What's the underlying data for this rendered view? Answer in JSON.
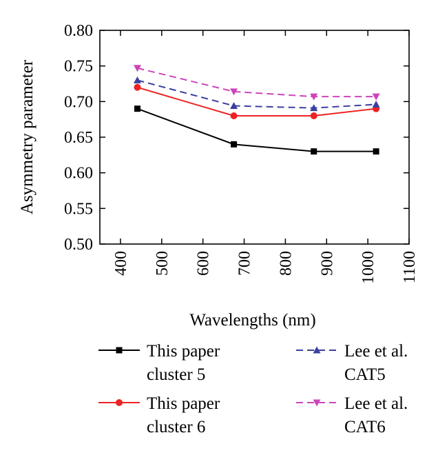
{
  "chart_data": {
    "type": "line",
    "xlabel": "Wavelengths (nm)",
    "ylabel": "Asymmetry parameter",
    "xlim": [
      350,
      1100
    ],
    "ylim": [
      0.5,
      0.8
    ],
    "x_ticks": [
      "400",
      "500",
      "600",
      "700",
      "800",
      "900",
      "1000",
      "1100"
    ],
    "y_ticks": [
      "0.80",
      "0.75",
      "0.70",
      "0.65",
      "0.60",
      "0.55",
      "0.50"
    ],
    "x": [
      441,
      675,
      869,
      1020
    ],
    "series": [
      {
        "name_lines": [
          "This paper",
          "cluster 5"
        ],
        "values": [
          0.69,
          0.64,
          0.63,
          0.63
        ],
        "color": "#000000",
        "dash": "solid",
        "marker": "square"
      },
      {
        "name_lines": [
          "This paper",
          "cluster 6"
        ],
        "values": [
          0.72,
          0.68,
          0.68,
          0.69
        ],
        "color": "#ee2222",
        "dash": "solid",
        "marker": "circle"
      },
      {
        "name_lines": [
          "Lee et al.",
          "CAT5"
        ],
        "values": [
          0.73,
          0.694,
          0.691,
          0.696
        ],
        "color": "#3a3fa0",
        "dash": "dashed",
        "marker": "triangle-up"
      },
      {
        "name_lines": [
          "Lee et al.",
          "CAT6"
        ],
        "values": [
          0.747,
          0.714,
          0.707,
          0.707
        ],
        "color": "#cc44bb",
        "dash": "dashed",
        "marker": "triangle-down"
      }
    ],
    "legend_position": "bottom",
    "grid": false
  }
}
